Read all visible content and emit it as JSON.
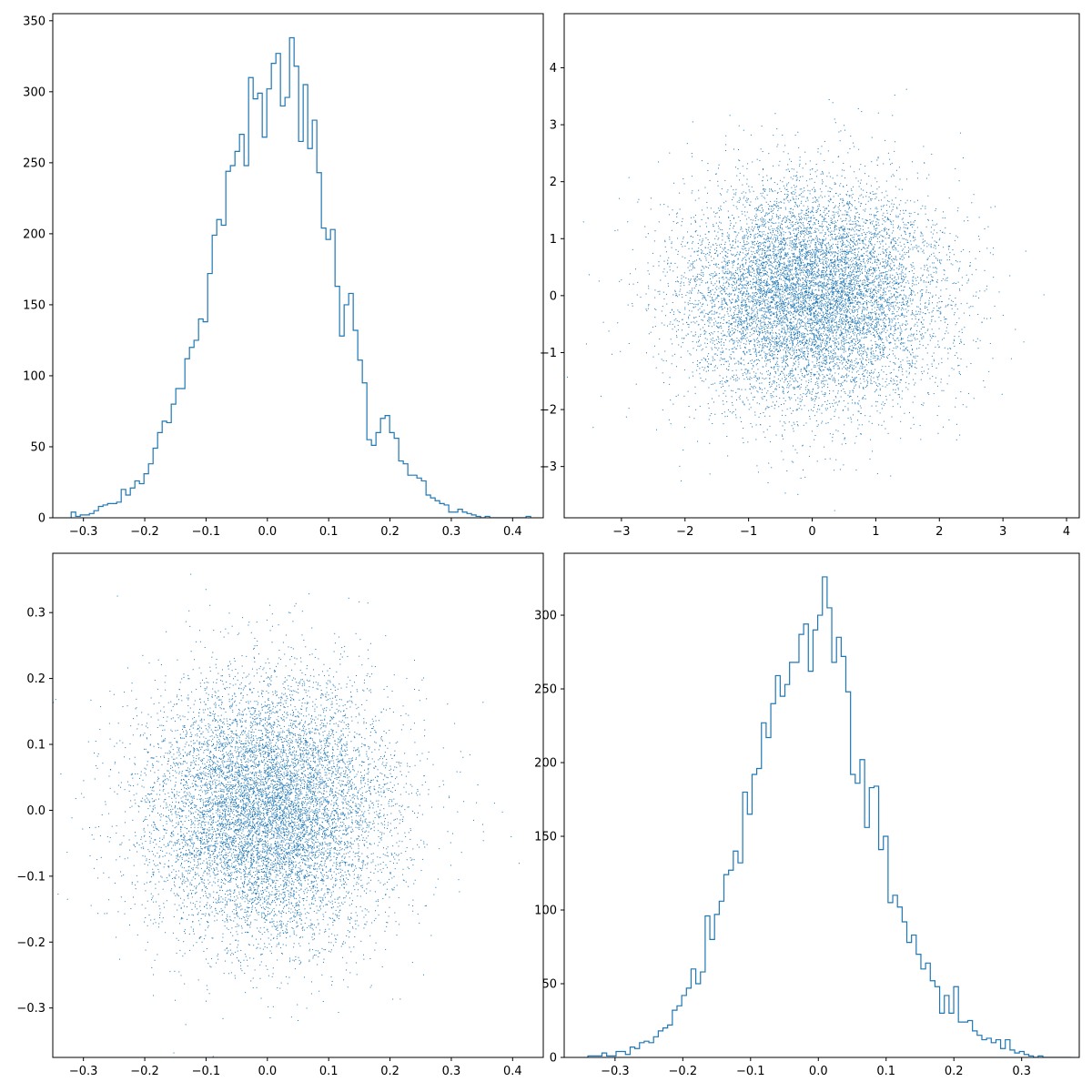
{
  "figure": {
    "background": "#ffffff",
    "accent": "#1f77b4"
  },
  "chart_data": [
    {
      "id": "hist-top-left",
      "type": "histogram",
      "title": "",
      "xlabel": "",
      "ylabel": "",
      "color": "#1f77b4",
      "xlim": [
        -0.35,
        0.45
      ],
      "ylim": [
        0,
        355
      ],
      "xticks": [
        -0.3,
        -0.2,
        -0.1,
        0.0,
        0.1,
        0.2,
        0.3,
        0.4
      ],
      "xtick_labels": [
        "−0.3",
        "−0.2",
        "−0.1",
        "0.0",
        "0.1",
        "0.2",
        "0.3",
        "0.4"
      ],
      "yticks": [
        0,
        50,
        100,
        150,
        200,
        250,
        300,
        350
      ],
      "ytick_labels": [
        "0",
        "50",
        "100",
        "150",
        "200",
        "250",
        "300",
        "350"
      ],
      "bin_start": -0.32,
      "bin_width": 0.00742,
      "counts": [
        4,
        1,
        2,
        2,
        3,
        5,
        8,
        9,
        10,
        10,
        11,
        20,
        16,
        21,
        26,
        24,
        31,
        38,
        49,
        60,
        68,
        67,
        80,
        91,
        91,
        112,
        120,
        125,
        140,
        138,
        172,
        199,
        210,
        206,
        244,
        248,
        258,
        270,
        248,
        310,
        295,
        299,
        268,
        302,
        320,
        327,
        290,
        296,
        338,
        318,
        265,
        305,
        260,
        280,
        243,
        204,
        196,
        203,
        163,
        128,
        150,
        158,
        132,
        111,
        95,
        55,
        51,
        60,
        70,
        72,
        60,
        56,
        40,
        38,
        30,
        30,
        28,
        26,
        16,
        14,
        12,
        10,
        9,
        4,
        4,
        6,
        4,
        3,
        2,
        1,
        0,
        1,
        0,
        0,
        0,
        0,
        0,
        0,
        0,
        0,
        1
      ]
    },
    {
      "id": "scatter-top-right",
      "type": "scatter",
      "title": "",
      "xlabel": "",
      "ylabel": "",
      "color": "#1f77b4",
      "n_points": 10000,
      "distribution": {
        "x_mean": 0,
        "x_std": 1,
        "y_mean": 0,
        "y_std": 1
      },
      "xlim": [
        -3.9,
        4.2
      ],
      "ylim": [
        -3.9,
        4.95
      ],
      "xticks": [
        -3,
        -2,
        -1,
        0,
        1,
        2,
        3,
        4
      ],
      "xtick_labels": [
        "−3",
        "−2",
        "−1",
        "0",
        "1",
        "2",
        "3",
        "4"
      ],
      "yticks": [
        -3,
        -2,
        -1,
        0,
        1,
        2,
        3,
        4
      ],
      "ytick_labels": [
        "−3",
        "−2",
        "−1",
        "0",
        "1",
        "2",
        "3",
        "4"
      ]
    },
    {
      "id": "scatter-bottom-left",
      "type": "scatter",
      "title": "",
      "xlabel": "",
      "ylabel": "",
      "color": "#1f77b4",
      "n_points": 10000,
      "distribution": {
        "x_mean": 0,
        "x_std": 0.1,
        "y_mean": 0,
        "y_std": 0.1
      },
      "xlim": [
        -0.35,
        0.45
      ],
      "ylim": [
        -0.375,
        0.39
      ],
      "xticks": [
        -0.3,
        -0.2,
        -0.1,
        0.0,
        0.1,
        0.2,
        0.3,
        0.4
      ],
      "xtick_labels": [
        "−0.3",
        "−0.2",
        "−0.1",
        "0.0",
        "0.1",
        "0.2",
        "0.3",
        "0.4"
      ],
      "yticks": [
        -0.3,
        -0.2,
        -0.1,
        0.0,
        0.1,
        0.2,
        0.3
      ],
      "ytick_labels": [
        "−0.3",
        "−0.2",
        "−0.1",
        "0.0",
        "0.1",
        "0.2",
        "0.3"
      ]
    },
    {
      "id": "hist-bottom-right",
      "type": "histogram",
      "title": "",
      "xlabel": "",
      "ylabel": "",
      "color": "#1f77b4",
      "xlim": [
        -0.375,
        0.385
      ],
      "ylim": [
        0,
        342
      ],
      "xticks": [
        -0.3,
        -0.2,
        -0.1,
        0.0,
        0.1,
        0.2,
        0.3
      ],
      "xtick_labels": [
        "−0.3",
        "−0.2",
        "−0.1",
        "0.0",
        "0.1",
        "0.2",
        "0.3"
      ],
      "yticks": [
        0,
        50,
        100,
        150,
        200,
        250,
        300
      ],
      "ytick_labels": [
        "0",
        "50",
        "100",
        "150",
        "200",
        "250",
        "300"
      ],
      "bin_start": -0.34,
      "bin_width": 0.00692,
      "counts": [
        1,
        1,
        1,
        3,
        1,
        1,
        4,
        4,
        2,
        7,
        6,
        10,
        11,
        10,
        14,
        18,
        20,
        22,
        32,
        35,
        42,
        47,
        60,
        50,
        58,
        96,
        80,
        97,
        106,
        124,
        127,
        140,
        132,
        180,
        165,
        192,
        196,
        227,
        217,
        240,
        259,
        245,
        253,
        268,
        268,
        287,
        294,
        262,
        290,
        300,
        326,
        305,
        268,
        285,
        272,
        248,
        192,
        186,
        202,
        156,
        183,
        184,
        141,
        150,
        105,
        110,
        102,
        92,
        78,
        83,
        70,
        60,
        64,
        52,
        48,
        30,
        42,
        30,
        48,
        24,
        24,
        25,
        18,
        15,
        12,
        13,
        10,
        12,
        6,
        12,
        5,
        3,
        4,
        2,
        1,
        0,
        1,
        0,
        0,
        0,
        0,
        0,
        0
      ]
    }
  ]
}
